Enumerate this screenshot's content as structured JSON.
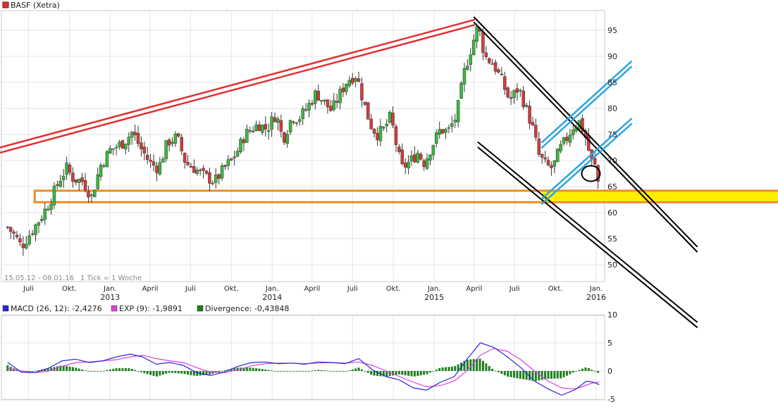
{
  "colors": {
    "accent_red": "#e03030",
    "accent_blue": "#2aa4e0",
    "support_orange": "#f08a24",
    "support_fill": "#ffee00",
    "candle_up": "#3cb83c",
    "candle_down": "#d23c3c",
    "macd_line": "#2828d8",
    "exp_line": "#e040e0",
    "divergence": "#1e7e1e"
  },
  "chart_data": [
    {
      "type": "candlestick",
      "title": "BASF (Xetra)",
      "period_label": "15.05.12 - 08.01.16",
      "tick_label": "1 Tick = 1 Woche",
      "ylim": [
        46,
        100
      ],
      "yticks": [
        "95",
        "90",
        "85",
        "80",
        "75",
        "70",
        "65",
        "60",
        "55",
        "50"
      ],
      "xticks": [
        {
          "x": "2012-07-01",
          "label": "Juli",
          "year": ""
        },
        {
          "x": "2012-10-01",
          "label": "Okt.",
          "year": ""
        },
        {
          "x": "2013-01-01",
          "label": "Jan.",
          "year": "2013"
        },
        {
          "x": "2013-04-01",
          "label": "April",
          "year": ""
        },
        {
          "x": "2013-07-01",
          "label": "Juli",
          "year": ""
        },
        {
          "x": "2013-10-01",
          "label": "Okt.",
          "year": ""
        },
        {
          "x": "2014-01-01",
          "label": "Jan.",
          "year": "2014"
        },
        {
          "x": "2014-04-01",
          "label": "April",
          "year": ""
        },
        {
          "x": "2014-07-01",
          "label": "Juli",
          "year": ""
        },
        {
          "x": "2014-10-01",
          "label": "Okt.",
          "year": ""
        },
        {
          "x": "2015-01-01",
          "label": "Jan.",
          "year": "2015"
        },
        {
          "x": "2015-04-01",
          "label": "April",
          "year": ""
        },
        {
          "x": "2015-07-01",
          "label": "Juli",
          "year": ""
        },
        {
          "x": "2015-10-01",
          "label": "Okt.",
          "year": ""
        },
        {
          "x": "2016-01-01",
          "label": "Jan.",
          "year": "2016"
        }
      ],
      "close_path": [
        [
          "2012-05-15",
          57.2
        ],
        [
          "2012-06-01",
          55.5
        ],
        [
          "2012-06-15",
          53.5
        ],
        [
          "2012-07-01",
          55.5
        ],
        [
          "2012-08-01",
          59.5
        ],
        [
          "2012-08-20",
          62.5
        ],
        [
          "2012-09-10",
          66.5
        ],
        [
          "2012-09-25",
          68.5
        ],
        [
          "2012-10-10",
          66.5
        ],
        [
          "2012-11-01",
          66.0
        ],
        [
          "2012-11-20",
          63.0
        ],
        [
          "2012-12-10",
          69.0
        ],
        [
          "2013-01-01",
          72.0
        ],
        [
          "2013-02-01",
          73.5
        ],
        [
          "2013-02-20",
          75.5
        ],
        [
          "2013-03-10",
          72.5
        ],
        [
          "2013-04-01",
          69.5
        ],
        [
          "2013-04-20",
          68.5
        ],
        [
          "2013-05-10",
          73.5
        ],
        [
          "2013-06-01",
          74.5
        ],
        [
          "2013-06-20",
          69.5
        ],
        [
          "2013-07-10",
          68.5
        ],
        [
          "2013-08-01",
          67.0
        ],
        [
          "2013-08-25",
          66.0
        ],
        [
          "2013-09-15",
          68.5
        ],
        [
          "2013-10-10",
          71.0
        ],
        [
          "2013-11-01",
          75.0
        ],
        [
          "2013-12-01",
          77.0
        ],
        [
          "2013-12-20",
          76.0
        ],
        [
          "2014-01-10",
          79.0
        ],
        [
          "2014-01-25",
          74.0
        ],
        [
          "2014-02-15",
          78.5
        ],
        [
          "2014-03-01",
          78.0
        ],
        [
          "2014-03-20",
          80.0
        ],
        [
          "2014-04-10",
          83.0
        ],
        [
          "2014-04-25",
          81.5
        ],
        [
          "2014-05-15",
          79.5
        ],
        [
          "2014-06-01",
          82.5
        ],
        [
          "2014-06-20",
          85.5
        ],
        [
          "2014-07-10",
          86.5
        ],
        [
          "2014-07-25",
          81.5
        ],
        [
          "2014-08-10",
          77.0
        ],
        [
          "2014-08-25",
          75.0
        ],
        [
          "2014-09-10",
          76.0
        ],
        [
          "2014-09-25",
          78.5
        ],
        [
          "2014-10-10",
          72.0
        ],
        [
          "2014-10-20",
          68.5
        ],
        [
          "2014-11-10",
          70.0
        ],
        [
          "2014-11-25",
          71.5
        ],
        [
          "2014-12-10",
          69.5
        ],
        [
          "2014-12-25",
          72.5
        ],
        [
          "2015-01-15",
          76.0
        ],
        [
          "2015-02-01",
          75.5
        ],
        [
          "2015-02-20",
          78.5
        ],
        [
          "2015-03-10",
          87.0
        ],
        [
          "2015-03-25",
          91.5
        ],
        [
          "2015-04-10",
          96.0
        ],
        [
          "2015-04-25",
          90.0
        ],
        [
          "2015-05-15",
          88.5
        ],
        [
          "2015-06-01",
          85.5
        ],
        [
          "2015-06-20",
          81.5
        ],
        [
          "2015-07-10",
          84.0
        ],
        [
          "2015-07-25",
          80.5
        ],
        [
          "2015-08-10",
          76.5
        ],
        [
          "2015-08-25",
          71.0
        ],
        [
          "2015-09-10",
          69.0
        ],
        [
          "2015-09-25",
          68.5
        ],
        [
          "2015-10-10",
          72.0
        ],
        [
          "2015-10-25",
          74.0
        ],
        [
          "2015-11-10",
          76.5
        ],
        [
          "2015-11-25",
          77.5
        ],
        [
          "2015-12-10",
          74.0
        ],
        [
          "2015-12-20",
          70.0
        ],
        [
          "2016-01-01",
          68.5
        ],
        [
          "2016-01-08",
          64.0
        ]
      ],
      "trendlines": [
        {
          "role": "resistance",
          "color": "#e03030",
          "from": [
            "2012-04-15",
            72.2
          ],
          "to": [
            "2015-04-01",
            97.0
          ]
        },
        {
          "role": "resistance",
          "color": "#e03030",
          "from": [
            "2012-04-15",
            71.2
          ],
          "to": [
            "2015-04-01",
            96.0
          ]
        },
        {
          "role": "channel",
          "color": "#000000",
          "from": [
            "2015-04-01",
            97.5
          ],
          "to": [
            "2016-08-15",
            53.5
          ]
        },
        {
          "role": "channel",
          "color": "#000000",
          "from": [
            "2015-04-01",
            96.5
          ],
          "to": [
            "2016-08-15",
            52.5
          ]
        },
        {
          "role": "channel",
          "color": "#000000",
          "from": [
            "2015-04-10",
            73.5
          ],
          "to": [
            "2016-08-15",
            39.0
          ]
        },
        {
          "role": "channel",
          "color": "#000000",
          "from": [
            "2015-04-10",
            72.5
          ],
          "to": [
            "2016-08-15",
            38.0
          ]
        },
        {
          "role": "channel",
          "color": "#2aa4e0",
          "from": [
            "2015-09-01",
            61.7
          ],
          "to": [
            "2016-03-20",
            77.0
          ]
        },
        {
          "role": "channel",
          "color": "#2aa4e0",
          "from": [
            "2015-09-01",
            62.7
          ],
          "to": [
            "2016-03-20",
            78.0
          ]
        },
        {
          "role": "channel",
          "color": "#2aa4e0",
          "from": [
            "2015-09-01",
            72.5
          ],
          "to": [
            "2016-03-20",
            88.0
          ]
        },
        {
          "role": "channel",
          "color": "#2aa4e0",
          "from": [
            "2015-09-01",
            73.5
          ],
          "to": [
            "2016-03-20",
            89.0
          ]
        }
      ],
      "support_zone": {
        "from": "2012-07-15",
        "y_low": 62.0,
        "y_high": 64.2,
        "border": "#f08a24",
        "fill": "#ffee00"
      },
      "highlight_circle": {
        "x": "2015-12-20",
        "y": 67.5
      }
    },
    {
      "type": "line",
      "legend": [
        {
          "label": "MACD (26, 12): -2,4276",
          "color": "#2828d8"
        },
        {
          "label": "EXP (9): -1,9891",
          "color": "#e040e0"
        },
        {
          "label": "Divergence: -0,43848",
          "color": "#1e7e1e"
        }
      ],
      "ylim": [
        -5,
        10
      ],
      "yticks": [
        "10",
        "5",
        "0",
        "-5"
      ],
      "series": [
        {
          "name": "MACD (26, 12)",
          "points": [
            [
              "2012-05-15",
              1.5
            ],
            [
              "2012-06-15",
              -0.2
            ],
            [
              "2012-07-15",
              -0.3
            ],
            [
              "2012-08-15",
              0.5
            ],
            [
              "2012-09-15",
              1.8
            ],
            [
              "2012-10-15",
              2.1
            ],
            [
              "2012-11-15",
              1.5
            ],
            [
              "2012-12-15",
              1.8
            ],
            [
              "2013-01-15",
              2.5
            ],
            [
              "2013-02-15",
              3.0
            ],
            [
              "2013-03-15",
              2.5
            ],
            [
              "2013-04-15",
              1.2
            ],
            [
              "2013-05-15",
              1.5
            ],
            [
              "2013-06-15",
              1.0
            ],
            [
              "2013-07-15",
              -0.3
            ],
            [
              "2013-08-15",
              -0.8
            ],
            [
              "2013-09-15",
              -0.2
            ],
            [
              "2013-10-15",
              0.8
            ],
            [
              "2013-11-15",
              1.5
            ],
            [
              "2013-12-15",
              1.6
            ],
            [
              "2014-01-15",
              1.3
            ],
            [
              "2014-02-15",
              1.4
            ],
            [
              "2014-03-15",
              1.2
            ],
            [
              "2014-04-15",
              1.6
            ],
            [
              "2014-05-15",
              1.5
            ],
            [
              "2014-06-15",
              1.3
            ],
            [
              "2014-07-15",
              2.2
            ],
            [
              "2014-08-15",
              0.2
            ],
            [
              "2014-09-15",
              -1.0
            ],
            [
              "2014-10-15",
              -1.6
            ],
            [
              "2014-11-15",
              -3.0
            ],
            [
              "2014-12-15",
              -3.4
            ],
            [
              "2015-01-15",
              -2.0
            ],
            [
              "2015-02-15",
              -1.0
            ],
            [
              "2015-03-15",
              2.0
            ],
            [
              "2015-04-15",
              5.0
            ],
            [
              "2015-05-15",
              4.2
            ],
            [
              "2015-06-15",
              2.5
            ],
            [
              "2015-07-15",
              0.6
            ],
            [
              "2015-08-15",
              -1.8
            ],
            [
              "2015-09-15",
              -3.2
            ],
            [
              "2015-10-15",
              -4.3
            ],
            [
              "2015-11-15",
              -3.3
            ],
            [
              "2015-12-10",
              -1.8
            ],
            [
              "2015-12-25",
              -2.0
            ],
            [
              "2016-01-08",
              -2.43
            ]
          ]
        },
        {
          "name": "EXP (9)",
          "points": [
            [
              "2012-05-15",
              0.5
            ],
            [
              "2012-06-15",
              0.0
            ],
            [
              "2012-07-15",
              -0.3
            ],
            [
              "2012-08-15",
              0.0
            ],
            [
              "2012-09-15",
              0.8
            ],
            [
              "2012-10-15",
              1.5
            ],
            [
              "2012-11-15",
              1.6
            ],
            [
              "2012-12-15",
              1.8
            ],
            [
              "2013-01-15",
              2.0
            ],
            [
              "2013-02-15",
              2.5
            ],
            [
              "2013-03-15",
              2.8
            ],
            [
              "2013-04-15",
              2.2
            ],
            [
              "2013-05-15",
              1.8
            ],
            [
              "2013-06-15",
              1.5
            ],
            [
              "2013-07-15",
              0.6
            ],
            [
              "2013-08-15",
              -0.2
            ],
            [
              "2013-09-15",
              -0.3
            ],
            [
              "2013-10-15",
              0.2
            ],
            [
              "2013-11-15",
              0.9
            ],
            [
              "2013-12-15",
              1.3
            ],
            [
              "2014-01-15",
              1.4
            ],
            [
              "2014-02-15",
              1.4
            ],
            [
              "2014-03-15",
              1.3
            ],
            [
              "2014-04-15",
              1.4
            ],
            [
              "2014-05-15",
              1.5
            ],
            [
              "2014-06-15",
              1.4
            ],
            [
              "2014-07-15",
              1.6
            ],
            [
              "2014-08-15",
              1.0
            ],
            [
              "2014-09-15",
              0.0
            ],
            [
              "2014-10-15",
              -1.0
            ],
            [
              "2014-11-15",
              -2.0
            ],
            [
              "2014-12-15",
              -2.8
            ],
            [
              "2015-01-15",
              -2.6
            ],
            [
              "2015-02-15",
              -1.8
            ],
            [
              "2015-03-15",
              0.0
            ],
            [
              "2015-04-15",
              2.8
            ],
            [
              "2015-05-15",
              4.0
            ],
            [
              "2015-06-15",
              3.5
            ],
            [
              "2015-07-15",
              2.0
            ],
            [
              "2015-08-15",
              0.0
            ],
            [
              "2015-09-15",
              -1.8
            ],
            [
              "2015-10-15",
              -3.0
            ],
            [
              "2015-11-15",
              -3.2
            ],
            [
              "2015-12-10",
              -2.5
            ],
            [
              "2015-12-25",
              -2.1
            ],
            [
              "2016-01-08",
              -1.99
            ]
          ]
        }
      ]
    }
  ]
}
